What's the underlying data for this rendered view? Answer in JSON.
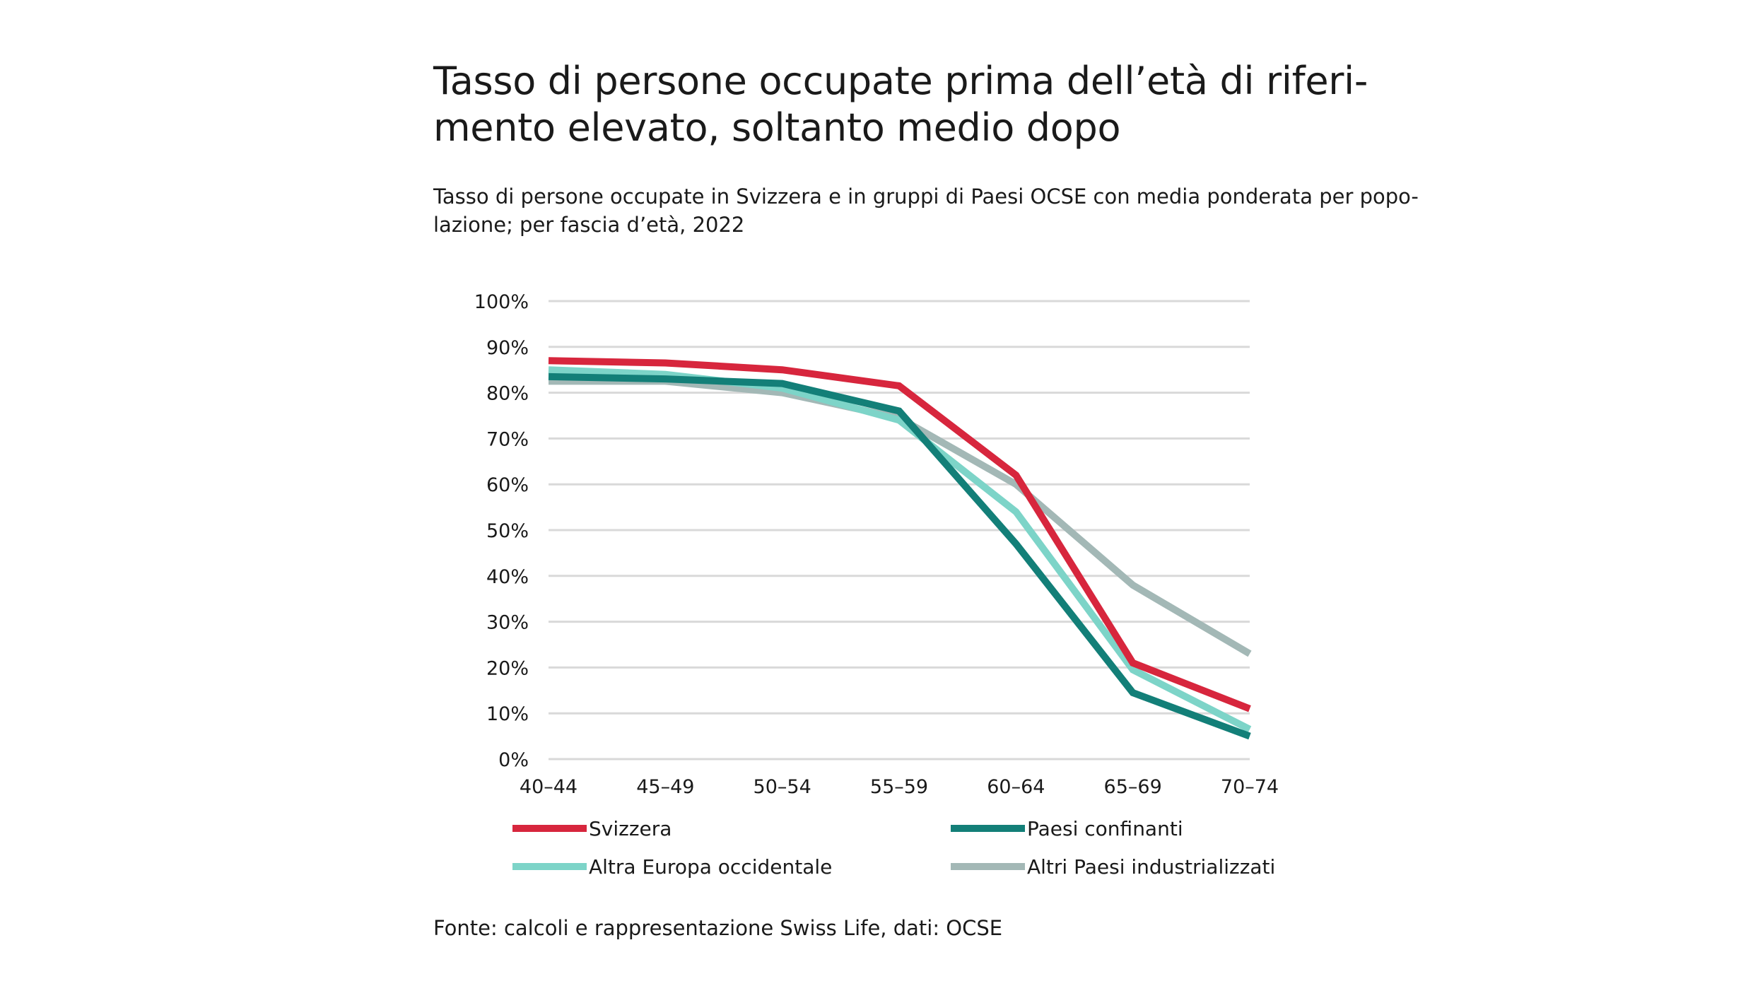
{
  "title_lines": [
    "Tasso di persone occupate prima dell’età di riferi-",
    "mento elevato, soltanto medio dopo"
  ],
  "subtitle_lines": [
    "Tasso di persone occupate in Svizzera e in gruppi di Paesi OCSE con media ponderata per popo-",
    "lazione; per fascia d’età, 2022"
  ],
  "source": "Fonte: calcoli e rappresentazione Swiss Life, dati: OCSE",
  "colors": {
    "grid": "#d9d9d9",
    "text": "#1a1a1a"
  },
  "chart_data": {
    "type": "line",
    "categories": [
      "40–44",
      "45–49",
      "50–54",
      "55–59",
      "60–64",
      "65–69",
      "70–74"
    ],
    "y_ticks": [
      "0%",
      "10%",
      "20%",
      "30%",
      "40%",
      "50%",
      "60%",
      "70%",
      "80%",
      "90%",
      "100%"
    ],
    "ylim": [
      0,
      100
    ],
    "grid": true,
    "legend_position": "bottom",
    "series": [
      {
        "name": "Svizzera",
        "color": "#d7263d",
        "values": [
          87,
          86.5,
          85,
          81.5,
          62,
          21,
          11
        ]
      },
      {
        "name": "Paesi confinanti",
        "color": "#137f78",
        "values": [
          83.5,
          83,
          82,
          76,
          47,
          14.5,
          5
        ]
      },
      {
        "name": "Altra Europa occidentale",
        "color": "#7dd4c8",
        "values": [
          85,
          84,
          81,
          74,
          54,
          19.5,
          6.5
        ]
      },
      {
        "name": "Altri Paesi industrializzati",
        "color": "#a3b8b6",
        "values": [
          82.5,
          82.5,
          80,
          74.5,
          60,
          38,
          23
        ]
      }
    ]
  }
}
